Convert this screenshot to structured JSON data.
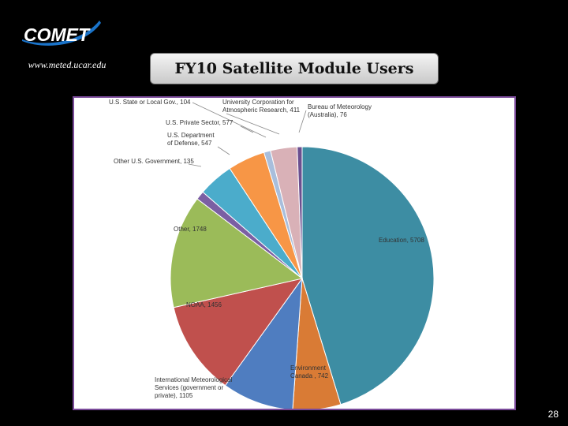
{
  "header": {
    "logo_text": "COMET",
    "site_url": "www.meted.ucar.edu",
    "title": "FY10 Satellite Module Users"
  },
  "footer": {
    "page_number": "28"
  },
  "chart_data": {
    "type": "pie",
    "title": "",
    "legend": "none",
    "slices": [
      {
        "name": "Education",
        "value": 5708,
        "label": [
          "Education, 5708"
        ],
        "color": "#3d8da3"
      },
      {
        "name": "Environment Canada",
        "value": 742,
        "label": [
          "Environment",
          "Canada , 742"
        ],
        "color": "#d97b35"
      },
      {
        "name": "International Meteorological Services (government or private)",
        "value": 1105,
        "label": [
          "International Meteorological",
          "Services (government or",
          "private), 1105"
        ],
        "color": "#4f7dc0"
      },
      {
        "name": "NOAA",
        "value": 1456,
        "label": [
          "NOAA, 1456"
        ],
        "color": "#c0504d"
      },
      {
        "name": "Other",
        "value": 1748,
        "label": [
          "Other, 1748"
        ],
        "color": "#9bbb59"
      },
      {
        "name": "Other U.S. Government",
        "value": 135,
        "label": [
          "Other U.S. Government, 135"
        ],
        "color": "#7b5fa3"
      },
      {
        "name": "U.S. Department of Defense",
        "value": 547,
        "label": [
          "U.S. Department",
          "of Defense, 547"
        ],
        "color": "#4baccb"
      },
      {
        "name": "U.S. Private Sector",
        "value": 577,
        "label": [
          "U.S. Private Sector, 577"
        ],
        "color": "#f79646"
      },
      {
        "name": "U.S. State or Local Gov.",
        "value": 104,
        "label": [
          "U.S. State or Local Gov., 104"
        ],
        "color": "#a8bedc"
      },
      {
        "name": "University Corporation for Atmospheric Research",
        "value": 411,
        "label": [
          "University Corporation for",
          "Atmospheric Research, 411"
        ],
        "color": "#d9b1b7"
      },
      {
        "name": "Bureau of Meteorology (Australia)",
        "value": 76,
        "label": [
          "Bureau of Meteorology",
          "(Australia), 76"
        ],
        "color": "#6b4f8f"
      }
    ]
  }
}
